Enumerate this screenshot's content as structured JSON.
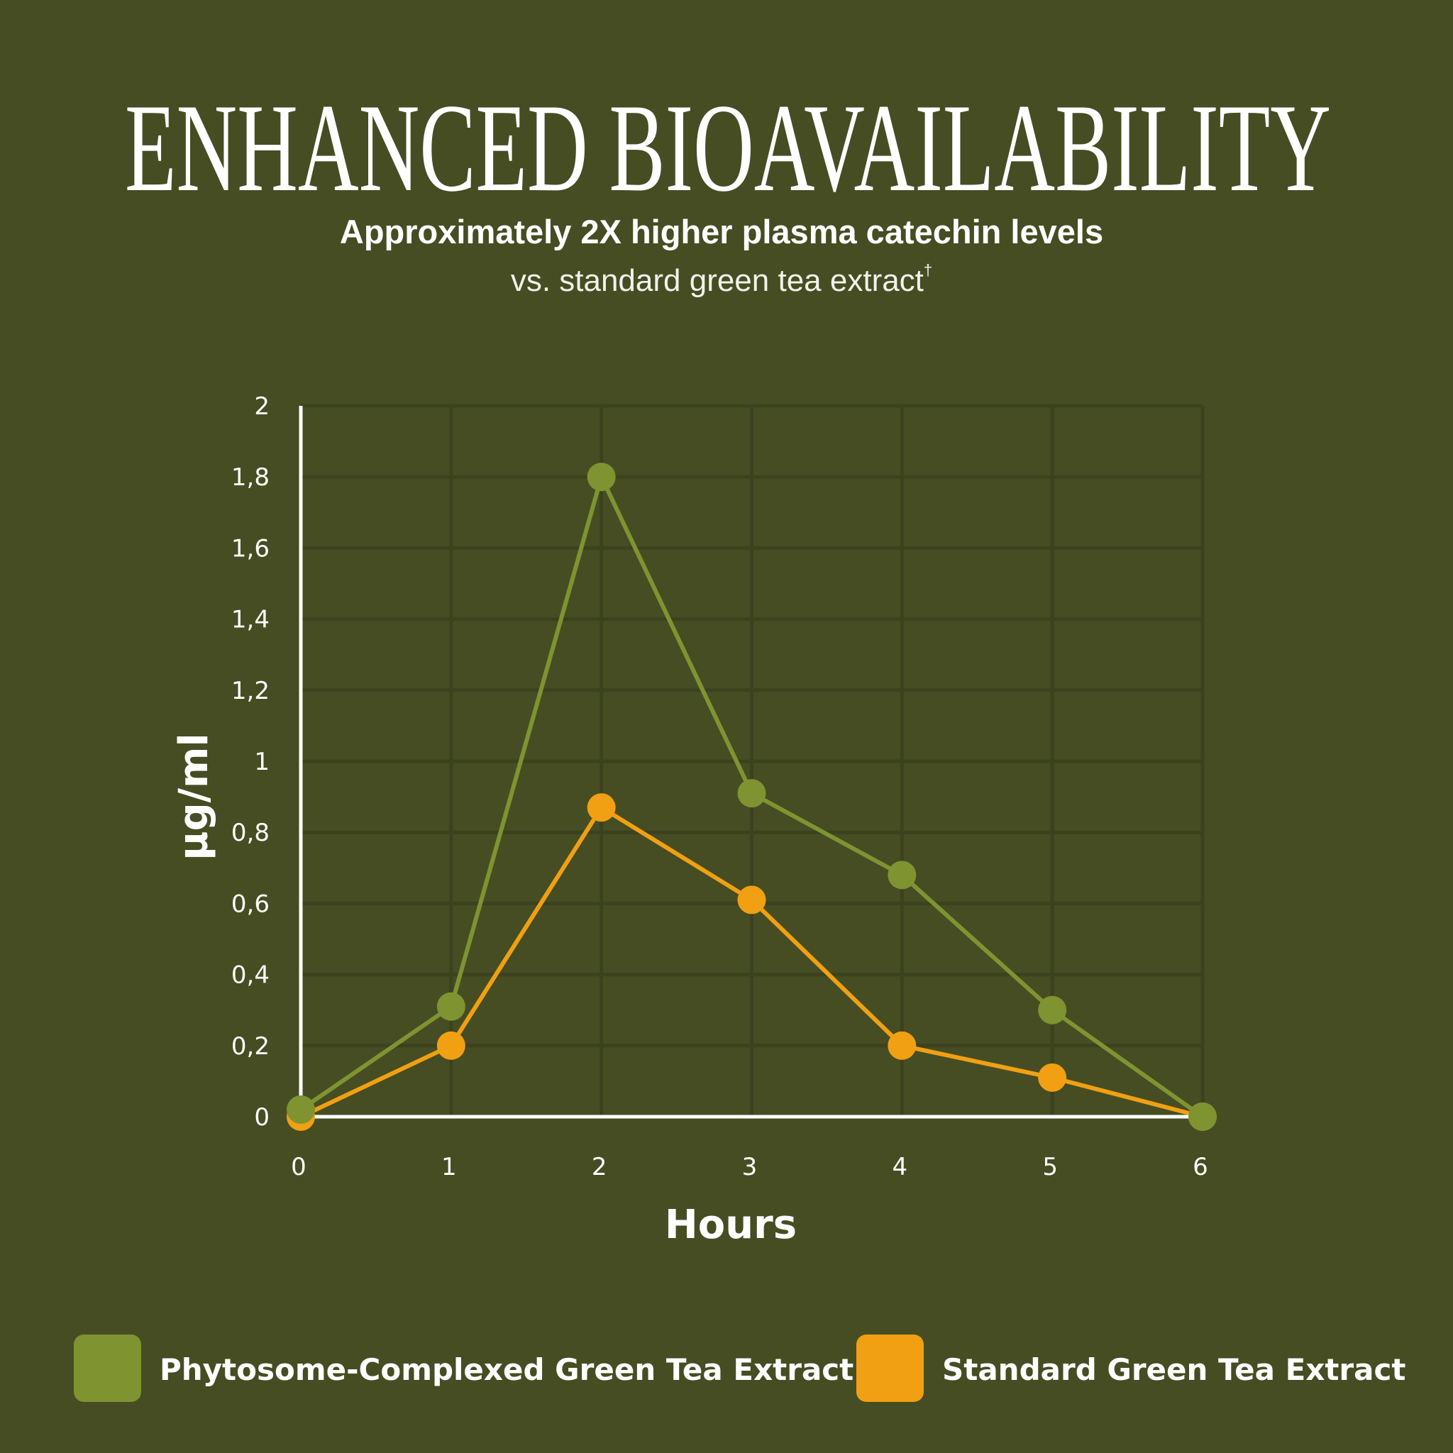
{
  "header": {
    "title": "ENHANCED BIOAVAILABILITY",
    "subtitle": "Approximately 2X higher plasma catechin levels",
    "subtitle2": "vs. standard green tea extract",
    "footnote_mark": "†"
  },
  "colors": {
    "background": "#464d23",
    "grid": "#3b421e",
    "axis": "#ffffff",
    "phytosome": "#7f9331",
    "standard": "#f0a012"
  },
  "chart_data": {
    "type": "line",
    "xlabel": "Hours",
    "ylabel": "µg/ml",
    "x": [
      0,
      1,
      2,
      3,
      4,
      5,
      6
    ],
    "xlim": [
      0,
      6
    ],
    "ylim": [
      0,
      2
    ],
    "x_ticks": [
      "0",
      "1",
      "2",
      "3",
      "4",
      "5",
      "6"
    ],
    "y_ticks": [
      "0",
      "0,2",
      "0,4",
      "0,6",
      "0,8",
      "1",
      "1,2",
      "1,4",
      "1,6",
      "1,8",
      "2"
    ],
    "grid": true,
    "legend_position": "bottom",
    "series": [
      {
        "name": "Phytosome-Complexed Green Tea Extract",
        "color": "#7f9331",
        "values": [
          0.02,
          0.31,
          1.8,
          0.91,
          0.68,
          0.3,
          0
        ]
      },
      {
        "name": "Standard Green Tea Extract",
        "color": "#f0a012",
        "values": [
          0,
          0.2,
          0.87,
          0.61,
          0.2,
          0.11,
          0
        ]
      }
    ]
  }
}
